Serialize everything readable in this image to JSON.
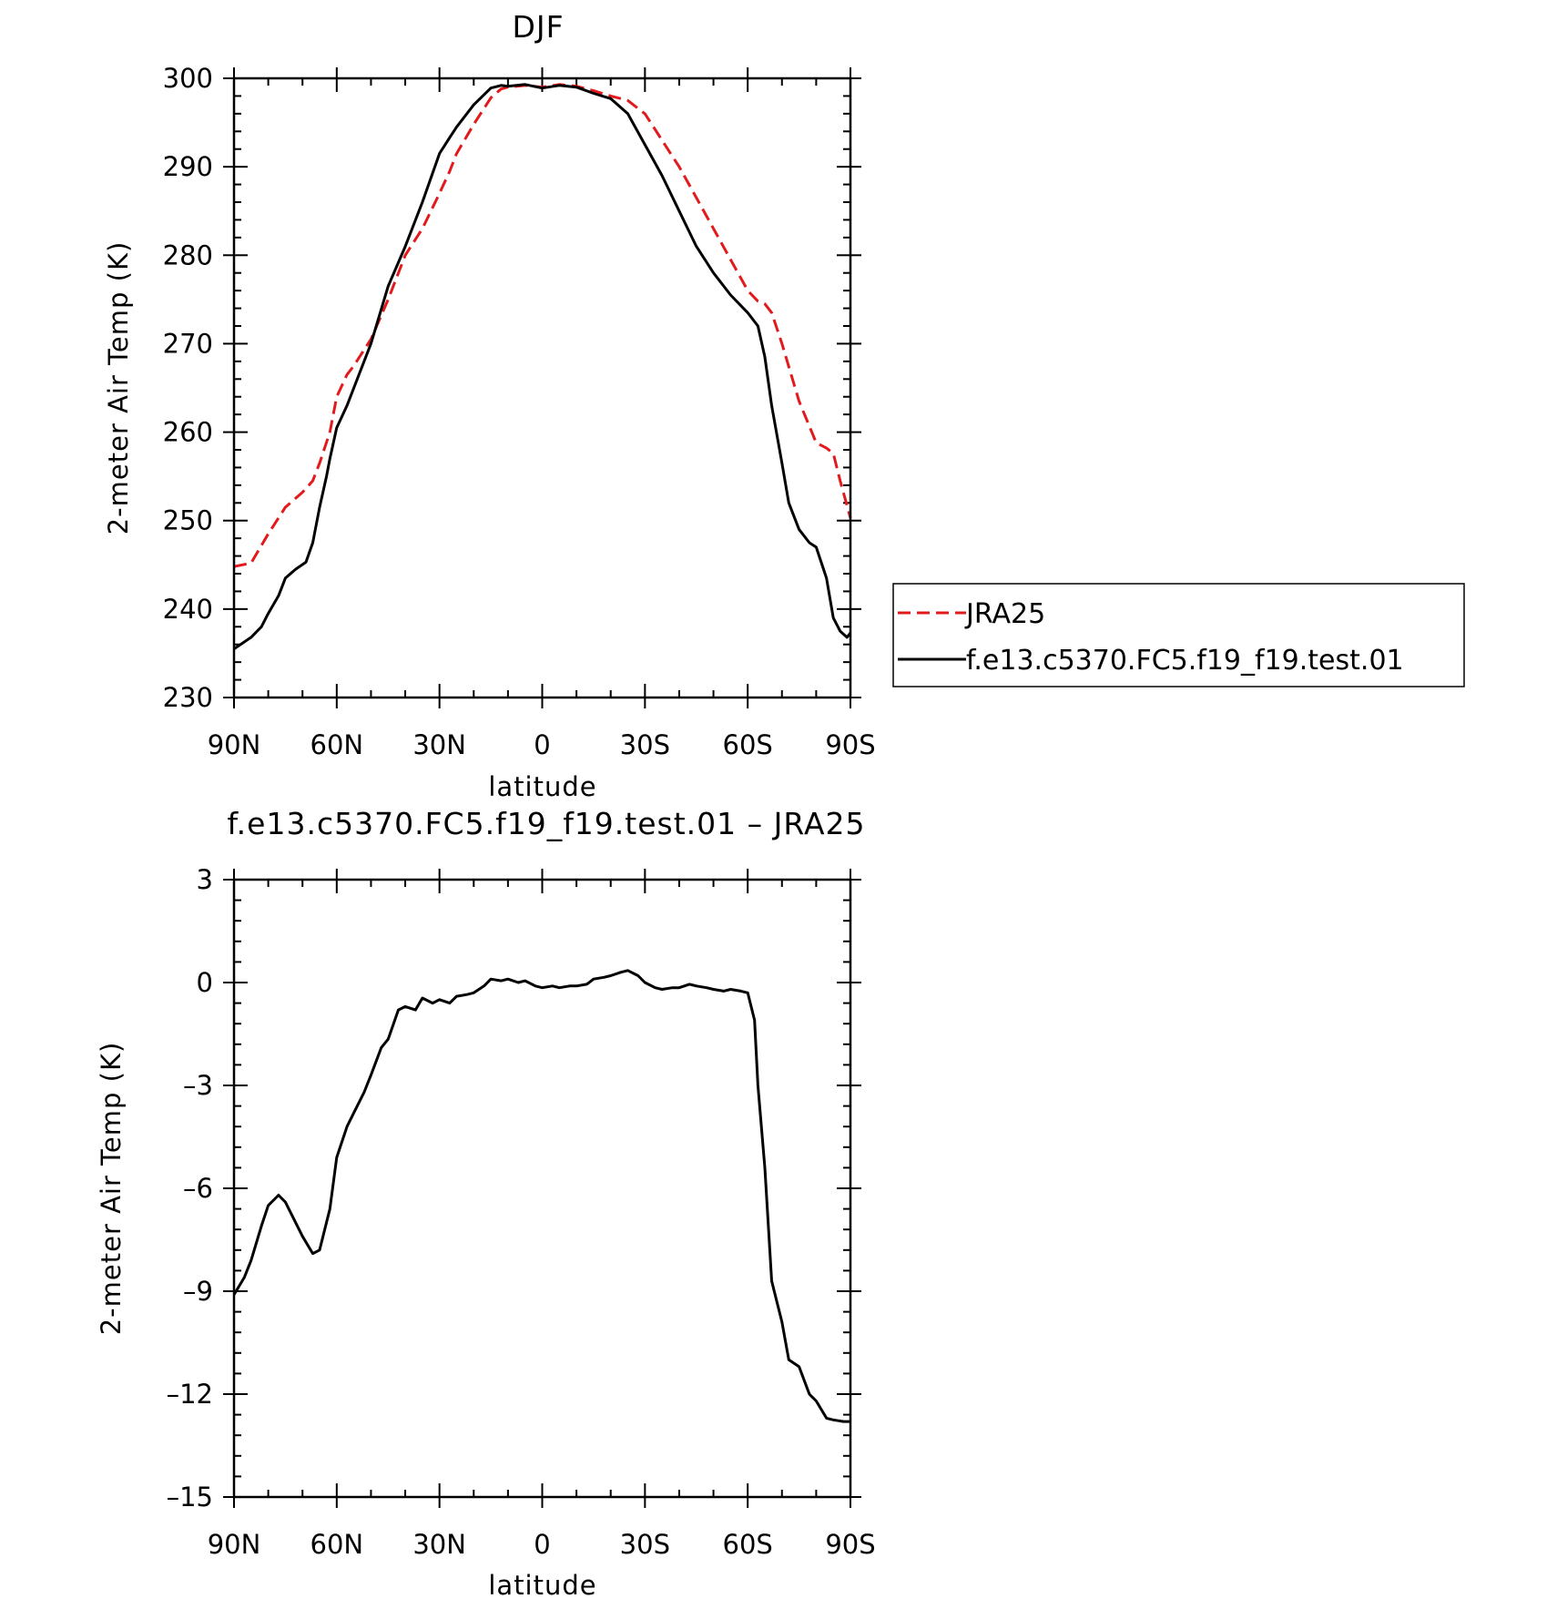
{
  "chart_data": [
    {
      "type": "line",
      "title": "DJF",
      "xlabel": "latitude",
      "ylabel": "2-meter Air Temp (K)",
      "xlim": [
        90,
        -90
      ],
      "ylim": [
        230,
        300
      ],
      "xticks": [
        {
          "value": 90,
          "label": "90N"
        },
        {
          "value": 60,
          "label": "60N"
        },
        {
          "value": 30,
          "label": "30N"
        },
        {
          "value": 0,
          "label": "0"
        },
        {
          "value": -30,
          "label": "30S"
        },
        {
          "value": -60,
          "label": "60S"
        },
        {
          "value": -90,
          "label": "90S"
        }
      ],
      "yticks": [
        {
          "value": 230,
          "label": "230"
        },
        {
          "value": 240,
          "label": "240"
        },
        {
          "value": 250,
          "label": "250"
        },
        {
          "value": 260,
          "label": "260"
        },
        {
          "value": 270,
          "label": "270"
        },
        {
          "value": 280,
          "label": "280"
        },
        {
          "value": 290,
          "label": "290"
        },
        {
          "value": 300,
          "label": "300"
        }
      ],
      "grid": false,
      "legend": "right",
      "series": [
        {
          "name": "JRA25",
          "color": "#e31a1c",
          "dash": "dashed",
          "x": [
            90,
            85,
            80,
            75,
            70,
            67,
            65,
            62,
            60,
            57,
            55,
            50,
            45,
            40,
            35,
            30,
            27,
            25,
            20,
            15,
            12,
            10,
            5,
            0,
            -5,
            -10,
            -15,
            -20,
            -25,
            -30,
            -35,
            -40,
            -45,
            -50,
            -55,
            -60,
            -63,
            -65,
            -67,
            -70,
            -75,
            -80,
            -83,
            -85,
            -87,
            -90
          ],
          "y": [
            244.8,
            245.2,
            248.5,
            251.5,
            253.2,
            254.5,
            256.5,
            260.0,
            264.0,
            266.5,
            267.5,
            270.5,
            275.0,
            280.0,
            283.0,
            287.0,
            289.5,
            291.5,
            294.8,
            297.8,
            298.8,
            299.0,
            299.2,
            299.0,
            299.3,
            299.1,
            298.6,
            298.0,
            297.5,
            296.0,
            293.0,
            290.0,
            286.5,
            283.0,
            279.5,
            276.0,
            274.8,
            274.5,
            273.5,
            270.0,
            263.5,
            258.8,
            258.2,
            257.6,
            254.5,
            250.3
          ]
        },
        {
          "name": "f.e13.c5370.FC5.f19_f19.test.01",
          "color": "#000000",
          "dash": "solid",
          "x": [
            90,
            85,
            82,
            80,
            77,
            75,
            72,
            69,
            67,
            65,
            63,
            62,
            60,
            57,
            55,
            50,
            45,
            40,
            35,
            30,
            27,
            25,
            20,
            15,
            12,
            10,
            5,
            0,
            -5,
            -10,
            -15,
            -20,
            -25,
            -30,
            -35,
            -40,
            -45,
            -50,
            -55,
            -60,
            -63,
            -65,
            -67,
            -70,
            -72,
            -75,
            -78,
            -80,
            -83,
            -85,
            -87,
            -89,
            -90
          ],
          "y": [
            235.5,
            236.8,
            238.0,
            239.5,
            241.5,
            243.5,
            244.5,
            245.3,
            247.5,
            251.5,
            255.0,
            257.0,
            260.5,
            263.0,
            265.0,
            270.0,
            276.5,
            281.0,
            286.0,
            291.5,
            293.3,
            294.5,
            297.0,
            298.9,
            299.2,
            299.1,
            299.3,
            298.9,
            299.2,
            299.0,
            298.3,
            297.7,
            296.0,
            292.5,
            289.0,
            285.0,
            281.0,
            278.0,
            275.5,
            273.5,
            272.0,
            268.5,
            263.0,
            256.5,
            252.0,
            249.0,
            247.5,
            247.0,
            243.5,
            239.0,
            237.5,
            236.8,
            237.3
          ]
        }
      ]
    },
    {
      "type": "line",
      "title": "f.e13.c5370.FC5.f19_f19.test.01 – JRA25",
      "xlabel": "latitude",
      "ylabel": "2-meter Air Temp (K)",
      "xlim": [
        90,
        -90
      ],
      "ylim": [
        -15,
        3
      ],
      "xticks": [
        {
          "value": 90,
          "label": "90N"
        },
        {
          "value": 60,
          "label": "60N"
        },
        {
          "value": 30,
          "label": "30N"
        },
        {
          "value": 0,
          "label": "0"
        },
        {
          "value": -30,
          "label": "30S"
        },
        {
          "value": -60,
          "label": "60S"
        },
        {
          "value": -90,
          "label": "90S"
        }
      ],
      "yticks": [
        {
          "value": 3,
          "label": "3"
        },
        {
          "value": 0,
          "label": "0"
        },
        {
          "value": -3,
          "label": "–3"
        },
        {
          "value": -6,
          "label": "–6"
        },
        {
          "value": -9,
          "label": "–9"
        },
        {
          "value": -12,
          "label": "–12"
        },
        {
          "value": -15,
          "label": "–15"
        }
      ],
      "grid": false,
      "series": [
        {
          "color": "#000000",
          "dash": "solid",
          "x": [
            90,
            87,
            85,
            82,
            80,
            77,
            75,
            72,
            70,
            67,
            65,
            62,
            60,
            57,
            55,
            52,
            50,
            47,
            45,
            42,
            40,
            37,
            35,
            32,
            30,
            27,
            25,
            22,
            20,
            17,
            15,
            12,
            10,
            7,
            5,
            2,
            0,
            -3,
            -5,
            -8,
            -10,
            -13,
            -15,
            -18,
            -20,
            -23,
            -25,
            -28,
            -30,
            -33,
            -35,
            -38,
            -40,
            -43,
            -45,
            -48,
            -50,
            -53,
            -55,
            -58,
            -60,
            -62,
            -63,
            -65,
            -67,
            -70,
            -72,
            -75,
            -78,
            -80,
            -83,
            -85,
            -88,
            -90
          ],
          "y": [
            -9.1,
            -8.6,
            -8.1,
            -7.1,
            -6.5,
            -6.2,
            -6.4,
            -7.0,
            -7.4,
            -7.9,
            -7.8,
            -6.6,
            -5.1,
            -4.2,
            -3.8,
            -3.2,
            -2.7,
            -1.9,
            -1.65,
            -0.8,
            -0.7,
            -0.8,
            -0.45,
            -0.6,
            -0.5,
            -0.6,
            -0.4,
            -0.35,
            -0.3,
            -0.1,
            0.1,
            0.05,
            0.1,
            0.0,
            0.05,
            -0.1,
            -0.15,
            -0.1,
            -0.15,
            -0.1,
            -0.1,
            -0.05,
            0.1,
            0.15,
            0.2,
            0.3,
            0.35,
            0.2,
            0.0,
            -0.15,
            -0.2,
            -0.15,
            -0.15,
            -0.05,
            -0.1,
            -0.15,
            -0.2,
            -0.25,
            -0.2,
            -0.25,
            -0.3,
            -1.1,
            -3.0,
            -5.4,
            -8.7,
            -9.9,
            -11.0,
            -11.2,
            -12.0,
            -12.2,
            -12.7,
            -12.75,
            -12.8,
            -12.8
          ]
        }
      ]
    }
  ]
}
